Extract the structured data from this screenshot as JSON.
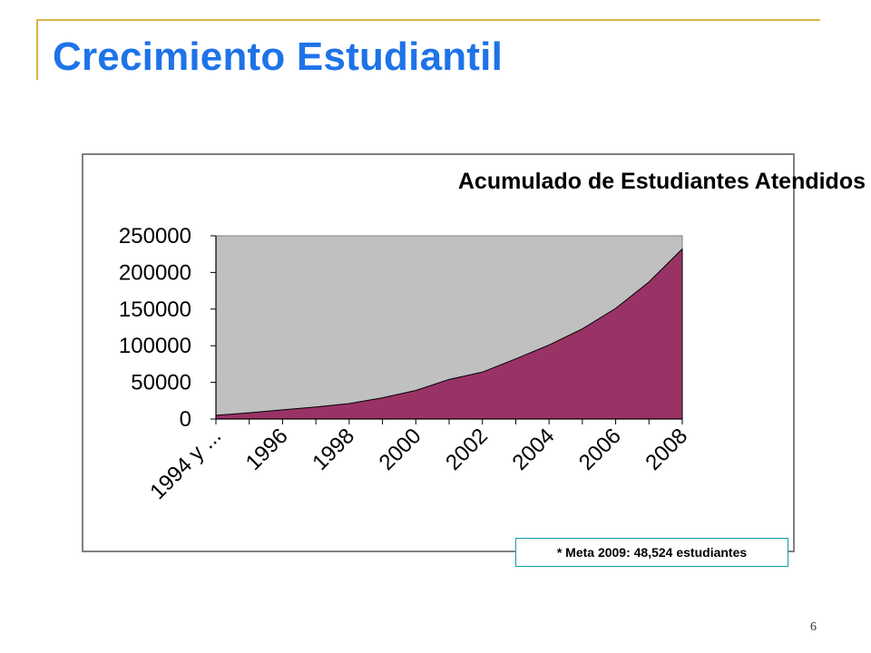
{
  "slide": {
    "title": "Crecimiento Estudiantil",
    "page_number": "6",
    "note": "* Meta 2009: 48,524 estudiantes"
  },
  "colors": {
    "frame": "#d7b64a",
    "title": "#1e73e8",
    "plot_background": "#c0c0c0",
    "area_fill": "#993366",
    "note_border": "#1a9aa6"
  },
  "chart_data": {
    "type": "area",
    "title": "Acumulado de Estudiantes Atendidos",
    "xlabel": "",
    "ylabel": "",
    "ylim": [
      0,
      250000
    ],
    "yticks": [
      0,
      50000,
      100000,
      150000,
      200000,
      250000
    ],
    "ytick_labels": [
      "0",
      "50000",
      "100000",
      "150000",
      "200000",
      "250000"
    ],
    "categories": [
      "1994 y ...",
      "1995",
      "1996",
      "1997",
      "1998",
      "1999",
      "2000",
      "2001",
      "2002",
      "2003",
      "2004",
      "2005",
      "2006",
      "2007",
      "2008"
    ],
    "xtick_labels": [
      "1994 y ...",
      "1996",
      "1998",
      "2000",
      "2002",
      "2004",
      "2006",
      "2008"
    ],
    "values": [
      5000,
      8500,
      12500,
      16500,
      21000,
      29000,
      39000,
      54000,
      64000,
      82000,
      101000,
      123000,
      151000,
      187000,
      232000
    ],
    "grid": false,
    "legend": "none"
  }
}
